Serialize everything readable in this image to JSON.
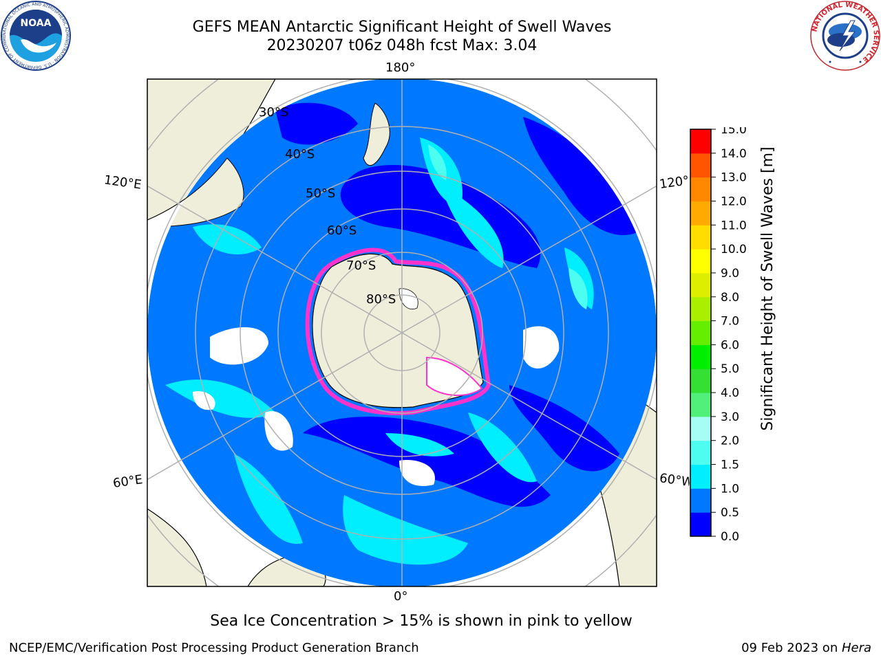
{
  "header": {
    "title_line1": "GEFS MEAN Antarctic Significant Height of Swell Waves",
    "title_line2": "20230207 t06z 048h fcst   Max: 3.04"
  },
  "logos": {
    "noaa_text": "NOAA",
    "noaa_ring_text": "NATIONAL OCEANIC AND ATMOSPHERIC ADMINISTRATION · U.S. DEPARTMENT OF COMMERCE",
    "nws_ring_text": "NATIONAL WEATHER SERVICE"
  },
  "map": {
    "projection": "south-polar-stereographic",
    "lon_labels": {
      "top": "180°",
      "bottom": "0°",
      "upper_left": "120°E",
      "upper_right": "120°W",
      "lower_left": "60°E",
      "lower_right": "60°W"
    },
    "lat_labels": [
      "30°S",
      "40°S",
      "50°S",
      "60°S",
      "70°S",
      "80°S"
    ]
  },
  "colorbar": {
    "label": "Significant Height of Swell Waves [m]",
    "ticks": [
      "0.0",
      "0.5",
      "1.0",
      "1.5",
      "2.0",
      "3.0",
      "4.0",
      "5.0",
      "6.0",
      "7.0",
      "8.0",
      "9.0",
      "10.0",
      "11.0",
      "12.0",
      "13.0",
      "14.0",
      "15.0"
    ],
    "colors": [
      "#0000ff",
      "#0078ff",
      "#00eeff",
      "#4cfdf0",
      "#a5fdf5",
      "#50f07a",
      "#33e033",
      "#00ee00",
      "#66ee00",
      "#aaee00",
      "#ddee00",
      "#ffff00",
      "#ffdd00",
      "#ffaa00",
      "#ff8800",
      "#ff5500",
      "#ff0000"
    ]
  },
  "colors": {
    "land": "#eeeedb",
    "ocean_low": "#0000ff",
    "ocean_mid": "#0078ff",
    "ocean_high": "#00eeff",
    "ocean_peak": "#4cfdf0",
    "ice_pink": "#ff33cc",
    "grid": "#b0b0b0"
  },
  "footer": {
    "note": "Sea Ice Concentration > 15% is shown in pink to yellow",
    "credit": "NCEP/EMC/Verification Post Processing Product Generation Branch",
    "date_prefix": "09 Feb 2023 on ",
    "date_host": "Hera"
  }
}
